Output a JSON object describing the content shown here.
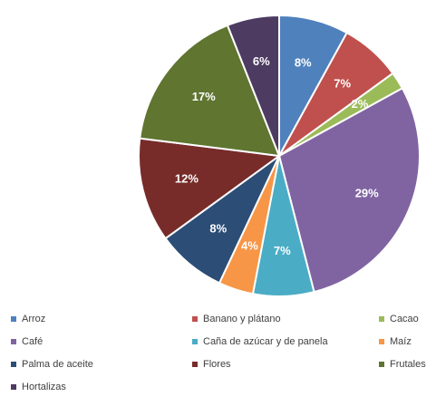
{
  "chart_data": {
    "type": "pie",
    "categories": [
      "Arroz",
      "Banano y plátano",
      "Cacao",
      "Café",
      "Caña de azúcar y de panela",
      "Maíz",
      "Palma de aceite",
      "Flores",
      "Frutales",
      "Hortalizas"
    ],
    "values": [
      8,
      7,
      2,
      29,
      7,
      4,
      8,
      12,
      17,
      6
    ],
    "value_labels": [
      "8%",
      "7%",
      "2%",
      "29%",
      "7%",
      "4%",
      "8%",
      "12%",
      "17%",
      "6%"
    ],
    "colors": [
      "#4f81bd",
      "#c0504d",
      "#9bbb59",
      "#8064a2",
      "#4bacc6",
      "#f79646",
      "#2c4d75",
      "#772c2a",
      "#5f7530",
      "#4d3b62"
    ]
  }
}
